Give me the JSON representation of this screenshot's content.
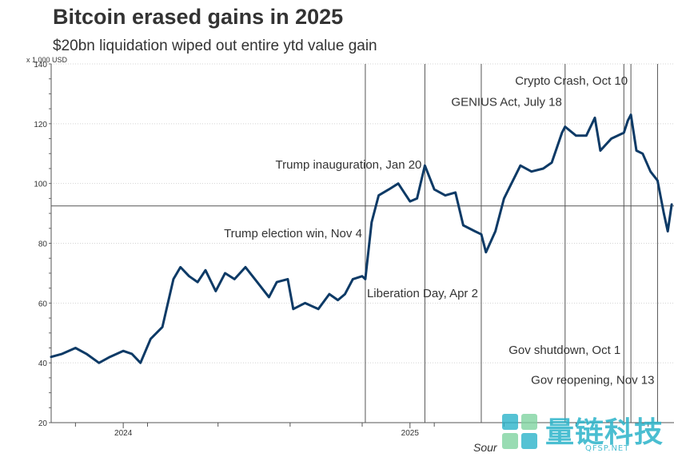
{
  "chart_data": {
    "type": "line",
    "title": "Bitcoin erased gains in 2025",
    "subtitle": "$20bn liquidation wiped out entire ytd value gain",
    "unit_label": "x 1,000 USD",
    "source_label": "Sour",
    "ylim": [
      20,
      140
    ],
    "y_ticks": [
      "20",
      "40",
      "60",
      "80",
      "100",
      "120",
      "140"
    ],
    "x_ticks": [
      {
        "label": "2024",
        "date": "2024-01-01"
      },
      {
        "label": "2025",
        "date": "2025-01-01"
      }
    ],
    "reference_line": 92.5,
    "series": [
      {
        "color": "#0d3a66",
        "x": [
          "2023-10-01",
          "2023-10-15",
          "2023-11-01",
          "2023-11-15",
          "2023-12-01",
          "2023-12-15",
          "2024-01-01",
          "2024-01-12",
          "2024-01-23",
          "2024-02-05",
          "2024-02-20",
          "2024-03-05",
          "2024-03-14",
          "2024-03-25",
          "2024-04-05",
          "2024-04-15",
          "2024-04-28",
          "2024-05-10",
          "2024-05-22",
          "2024-06-05",
          "2024-06-20",
          "2024-07-05",
          "2024-07-15",
          "2024-07-29",
          "2024-08-05",
          "2024-08-20",
          "2024-09-06",
          "2024-09-20",
          "2024-10-01",
          "2024-10-10",
          "2024-10-20",
          "2024-11-01",
          "2024-11-05",
          "2024-11-13",
          "2024-11-22",
          "2024-12-05",
          "2024-12-17",
          "2025-01-01",
          "2025-01-10",
          "2025-01-20",
          "2025-02-01",
          "2025-02-15",
          "2025-02-28",
          "2025-03-10",
          "2025-03-25",
          "2025-04-02",
          "2025-04-08",
          "2025-04-20",
          "2025-05-01",
          "2025-05-22",
          "2025-06-05",
          "2025-06-20",
          "2025-07-01",
          "2025-07-14",
          "2025-07-18",
          "2025-08-01",
          "2025-08-14",
          "2025-08-25",
          "2025-09-01",
          "2025-09-15",
          "2025-10-01",
          "2025-10-06",
          "2025-10-10",
          "2025-10-17",
          "2025-10-25",
          "2025-11-04",
          "2025-11-13",
          "2025-11-21",
          "2025-11-26",
          "2025-12-01"
        ],
        "values": [
          42,
          43,
          45,
          43,
          40,
          42,
          44,
          43,
          40,
          48,
          52,
          68,
          72,
          69,
          67,
          71,
          64,
          70,
          68,
          72,
          67,
          62,
          67,
          68,
          58,
          60,
          58,
          63,
          61,
          63,
          68,
          69,
          68,
          87,
          96,
          98,
          100,
          94,
          95,
          106,
          98,
          96,
          97,
          86,
          84,
          83,
          77,
          84,
          95,
          106,
          104,
          105,
          107,
          117,
          119,
          116,
          116,
          122,
          111,
          115,
          117,
          121,
          123,
          111,
          110,
          104,
          101,
          90,
          84,
          93
        ]
      }
    ],
    "events": [
      {
        "label": "Trump election win, Nov 4",
        "date": "2024-11-05",
        "label_y": 82
      },
      {
        "label": "Trump inauguration, Jan 20",
        "date": "2025-01-20",
        "label_y": 105
      },
      {
        "label": "Liberation Day, Apr 2",
        "date": "2025-04-02",
        "label_y": 62
      },
      {
        "label": "GENIUS Act, July 18",
        "date": "2025-07-18",
        "label_y": 126
      },
      {
        "label": "Crypto Crash, Oct 10",
        "date": "2025-10-10",
        "label_y": 133
      },
      {
        "label": "Gov shutdown, Oct 1",
        "date": "2025-10-01",
        "label_y": 43
      },
      {
        "label": "Gov reopening, Nov 13",
        "date": "2025-11-13",
        "label_y": 33
      }
    ]
  },
  "watermark": {
    "text": "量链科技",
    "subtext": "QFSP.NET"
  }
}
